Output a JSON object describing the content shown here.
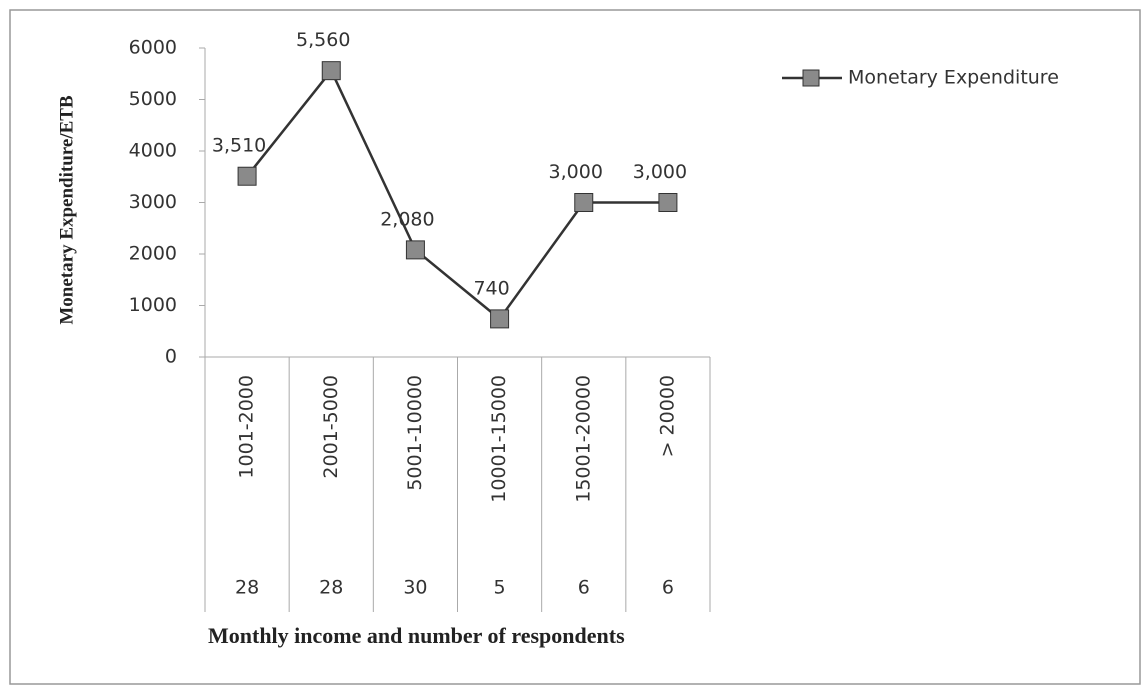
{
  "chart_data": {
    "type": "line",
    "y_axis_label": "Monetary Expenditure/ETB",
    "x_axis_label": "Monthly income and number of respondents",
    "categories": [
      "1001-2000",
      "2001-5000",
      "5001-10000",
      "10001-15000",
      "15001-20000",
      "> 20000"
    ],
    "category_counts": [
      28,
      28,
      30,
      5,
      6,
      6
    ],
    "series": [
      {
        "name": "Monetary Expenditure",
        "color": "#333333",
        "marker_color": "#8a8a8a",
        "values": [
          3510,
          5560,
          2080,
          740,
          3000,
          3000
        ],
        "value_labels": [
          "3,510",
          "5,560",
          "2,080",
          "740",
          "3,000",
          "3,000"
        ]
      }
    ],
    "ylim": [
      0,
      6000
    ],
    "yticks": [
      0,
      1000,
      2000,
      3000,
      4000,
      5000,
      6000
    ],
    "legend": "top-right"
  }
}
